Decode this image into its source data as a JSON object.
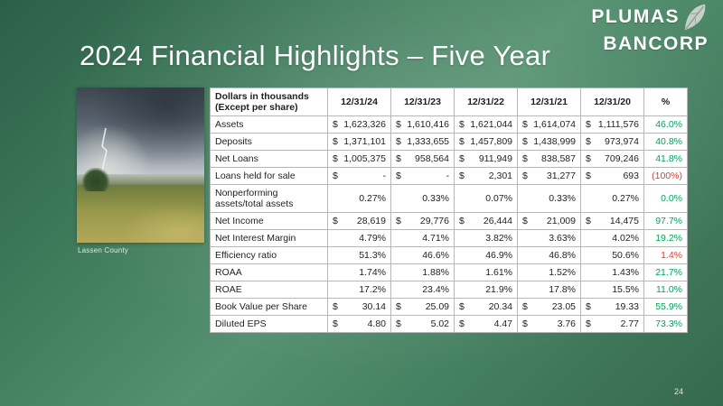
{
  "slide": {
    "title": "2024 Financial Highlights – Five Year",
    "page_number": "24"
  },
  "logo": {
    "line1": "PLUMAS",
    "line2": "BANCORP"
  },
  "photo": {
    "caption": "Lassen County"
  },
  "colors": {
    "positive_pct": "#00a65a",
    "negative_pct": "#e03c31",
    "background_green": "#3f7a5b"
  },
  "table": {
    "header_label": "Dollars in thousands\n(Except per share)",
    "date_columns": [
      "12/31/24",
      "12/31/23",
      "12/31/22",
      "12/31/21",
      "12/31/20"
    ],
    "pct_header": "%",
    "rows": [
      {
        "label": "Assets",
        "cells": [
          {
            "d": "$",
            "v": "1,623,326"
          },
          {
            "d": "$",
            "v": "1,610,416"
          },
          {
            "d": "$",
            "v": "1,621,044"
          },
          {
            "d": "$",
            "v": "1,614,074"
          },
          {
            "d": "$",
            "v": "1,111,576"
          }
        ],
        "pct": "46.0%",
        "trend": "positive"
      },
      {
        "label": "Deposits",
        "cells": [
          {
            "d": "$",
            "v": "1,371,101"
          },
          {
            "d": "$",
            "v": "1,333,655"
          },
          {
            "d": "$",
            "v": "1,457,809"
          },
          {
            "d": "$",
            "v": "1,438,999"
          },
          {
            "d": "$",
            "v": "973,974"
          }
        ],
        "pct": "40.8%",
        "trend": "positive"
      },
      {
        "label": "Net Loans",
        "cells": [
          {
            "d": "$",
            "v": "1,005,375"
          },
          {
            "d": "$",
            "v": "958,564"
          },
          {
            "d": "$",
            "v": "911,949"
          },
          {
            "d": "$",
            "v": "838,587"
          },
          {
            "d": "$",
            "v": "709,246"
          }
        ],
        "pct": "41.8%",
        "trend": "positive"
      },
      {
        "label": "Loans held for sale",
        "cells": [
          {
            "d": "$",
            "v": "-"
          },
          {
            "d": "$",
            "v": "-"
          },
          {
            "d": "$",
            "v": "2,301"
          },
          {
            "d": "$",
            "v": "31,277"
          },
          {
            "d": "$",
            "v": "693"
          }
        ],
        "pct": "(100%)",
        "trend": "negative"
      },
      {
        "label": "Nonperforming assets/total assets",
        "cells": [
          {
            "d": "",
            "v": "0.27%"
          },
          {
            "d": "",
            "v": "0.33%"
          },
          {
            "d": "",
            "v": "0.07%"
          },
          {
            "d": "",
            "v": "0.33%"
          },
          {
            "d": "",
            "v": "0.27%"
          }
        ],
        "pct": "0.0%",
        "trend": "positive"
      },
      {
        "label": "Net Income",
        "cells": [
          {
            "d": "$",
            "v": "28,619"
          },
          {
            "d": "$",
            "v": "29,776"
          },
          {
            "d": "$",
            "v": "26,444"
          },
          {
            "d": "$",
            "v": "21,009"
          },
          {
            "d": "$",
            "v": "14,475"
          }
        ],
        "pct": "97.7%",
        "trend": "positive"
      },
      {
        "label": "Net Interest Margin",
        "cells": [
          {
            "d": "",
            "v": "4.79%"
          },
          {
            "d": "",
            "v": "4.71%"
          },
          {
            "d": "",
            "v": "3.82%"
          },
          {
            "d": "",
            "v": "3.63%"
          },
          {
            "d": "",
            "v": "4.02%"
          }
        ],
        "pct": "19.2%",
        "trend": "positive"
      },
      {
        "label": "Efficiency ratio",
        "cells": [
          {
            "d": "",
            "v": "51.3%"
          },
          {
            "d": "",
            "v": "46.6%"
          },
          {
            "d": "",
            "v": "46.9%"
          },
          {
            "d": "",
            "v": "46.8%"
          },
          {
            "d": "",
            "v": "50.6%"
          }
        ],
        "pct": "1.4%",
        "trend": "negative"
      },
      {
        "label": "ROAA",
        "cells": [
          {
            "d": "",
            "v": "1.74%"
          },
          {
            "d": "",
            "v": "1.88%"
          },
          {
            "d": "",
            "v": "1.61%"
          },
          {
            "d": "",
            "v": "1.52%"
          },
          {
            "d": "",
            "v": "1.43%"
          }
        ],
        "pct": "21.7%",
        "trend": "positive"
      },
      {
        "label": "ROAE",
        "cells": [
          {
            "d": "",
            "v": "17.2%"
          },
          {
            "d": "",
            "v": "23.4%"
          },
          {
            "d": "",
            "v": "21.9%"
          },
          {
            "d": "",
            "v": "17.8%"
          },
          {
            "d": "",
            "v": "15.5%"
          }
        ],
        "pct": "11.0%",
        "trend": "positive"
      },
      {
        "label": "Book Value per Share",
        "cells": [
          {
            "d": "$",
            "v": "30.14"
          },
          {
            "d": "$",
            "v": "25.09"
          },
          {
            "d": "$",
            "v": "20.34"
          },
          {
            "d": "$",
            "v": "23.05"
          },
          {
            "d": "$",
            "v": "19.33"
          }
        ],
        "pct": "55.9%",
        "trend": "positive"
      },
      {
        "label": "Diluted EPS",
        "cells": [
          {
            "d": "$",
            "v": "4.80"
          },
          {
            "d": "$",
            "v": "5.02"
          },
          {
            "d": "$",
            "v": "4.47"
          },
          {
            "d": "$",
            "v": "3.76"
          },
          {
            "d": "$",
            "v": "2.77"
          }
        ],
        "pct": "73.3%",
        "trend": "positive"
      }
    ]
  }
}
